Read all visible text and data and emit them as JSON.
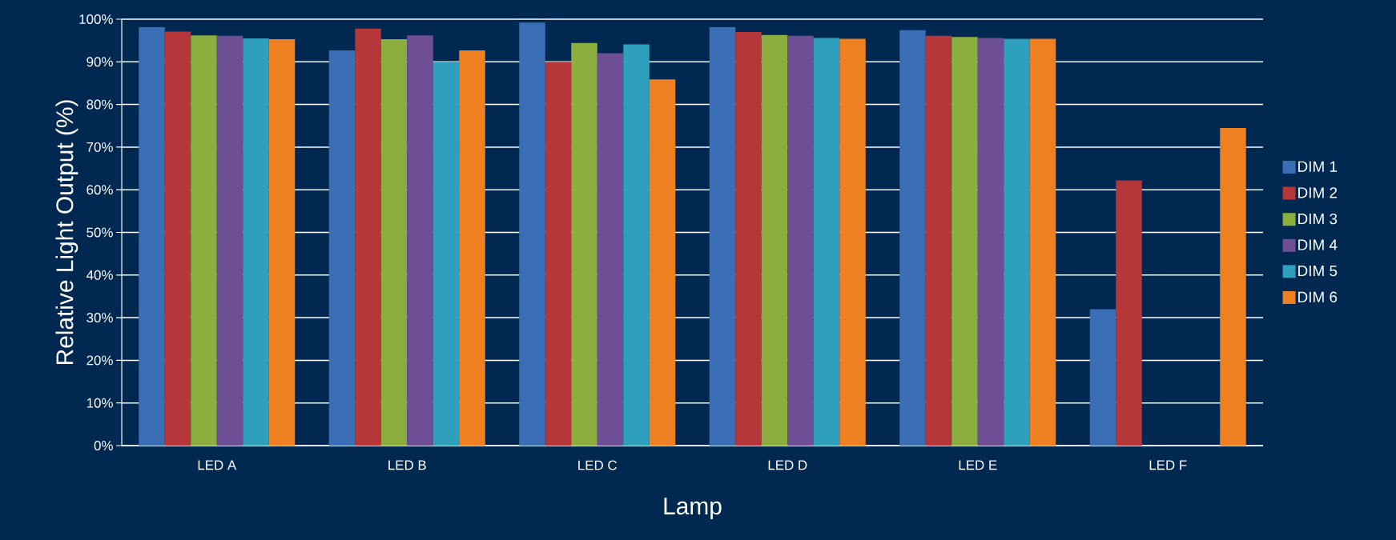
{
  "chart_data": {
    "type": "bar",
    "xlabel": "Lamp",
    "ylabel": "Relative Light Output (%)",
    "categories": [
      "LED A",
      "LED B",
      "LED C",
      "LED D",
      "LED E",
      "LED F"
    ],
    "series": [
      {
        "name": "DIM 1",
        "color": "#3a6fb5",
        "values": [
          98.1,
          92.7,
          99.2,
          98.1,
          97.4,
          32.0
        ]
      },
      {
        "name": "DIM 2",
        "color": "#b5373a",
        "values": [
          97.1,
          97.8,
          90.0,
          97.0,
          96.1,
          62.2
        ]
      },
      {
        "name": "DIM 3",
        "color": "#8bae3f",
        "values": [
          96.2,
          95.3,
          94.4,
          96.3,
          95.8,
          null
        ]
      },
      {
        "name": "DIM 4",
        "color": "#6e4f96",
        "values": [
          96.1,
          96.2,
          92.0,
          96.1,
          95.6,
          null
        ]
      },
      {
        "name": "DIM 5",
        "color": "#2e9fbd",
        "values": [
          95.5,
          90.0,
          94.1,
          95.6,
          95.4,
          null
        ]
      },
      {
        "name": "DIM 6",
        "color": "#ee8022",
        "values": [
          95.3,
          92.7,
          85.9,
          95.4,
          95.4,
          74.5
        ]
      }
    ],
    "ylim": [
      0,
      100
    ],
    "yticks": [
      {
        "value": 0,
        "label": "0%"
      },
      {
        "value": 10,
        "label": "10%"
      },
      {
        "value": 20,
        "label": "20%"
      },
      {
        "value": 30,
        "label": "30%"
      },
      {
        "value": 40,
        "label": "40%"
      },
      {
        "value": 50,
        "label": "50%"
      },
      {
        "value": 60,
        "label": "60%"
      },
      {
        "value": 70,
        "label": "70%"
      },
      {
        "value": 80,
        "label": "80%"
      },
      {
        "value": 90,
        "label": "90%"
      },
      {
        "value": 100,
        "label": "100%"
      }
    ],
    "grid": "y",
    "legend": "right"
  }
}
